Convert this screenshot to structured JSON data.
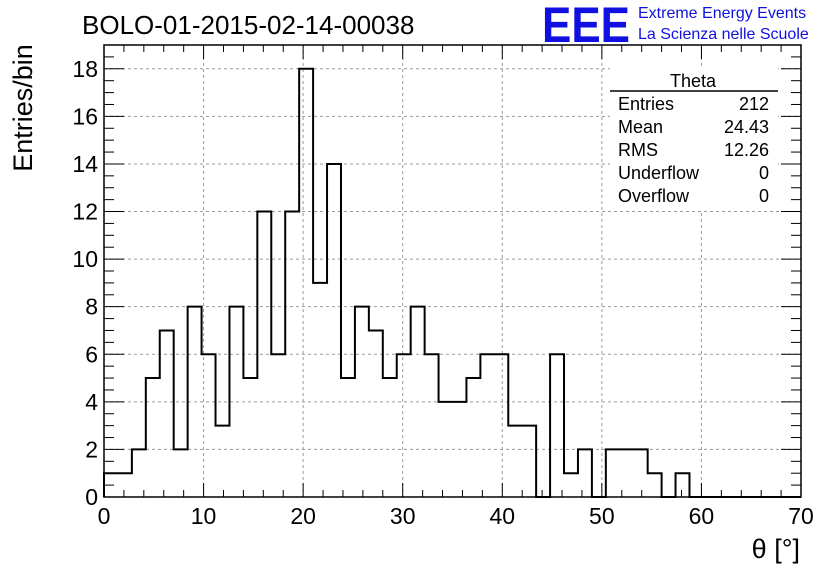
{
  "chart_data": {
    "type": "histogram",
    "title": "BOLO-01-2015-02-14-00038",
    "xlabel": "θ [°]",
    "ylabel": "Entries/bin",
    "xlim": [
      0,
      70
    ],
    "ylim": [
      0,
      19
    ],
    "bin_width": 1.4,
    "grid": true,
    "x_ticks": [
      "0",
      "10",
      "20",
      "30",
      "40",
      "50",
      "60",
      "70"
    ],
    "y_ticks": [
      "0",
      "2",
      "4",
      "6",
      "8",
      "10",
      "12",
      "14",
      "16",
      "18"
    ],
    "values": [
      1,
      1,
      2,
      5,
      7,
      2,
      8,
      6,
      3,
      8,
      5,
      12,
      6,
      12,
      18,
      9,
      14,
      5,
      8,
      7,
      5,
      6,
      8,
      6,
      4,
      4,
      5,
      6,
      6,
      3,
      3,
      0,
      6,
      1,
      2,
      0,
      2,
      2,
      2,
      1,
      0,
      1,
      0,
      0,
      0,
      0,
      0,
      0,
      0,
      0
    ]
  },
  "stats_box": {
    "title": "Theta",
    "rows": [
      {
        "label": "Entries",
        "value": "212"
      },
      {
        "label": "Mean",
        "value": "24.43"
      },
      {
        "label": "RMS",
        "value": "12.26"
      },
      {
        "label": "Underflow",
        "value": "0"
      },
      {
        "label": "Overflow",
        "value": "0"
      }
    ]
  },
  "logo": {
    "mark": "EEE",
    "line1": "Extreme Energy Events",
    "line2": "La Scienza nelle Scuole",
    "color": "#1010e0"
  }
}
